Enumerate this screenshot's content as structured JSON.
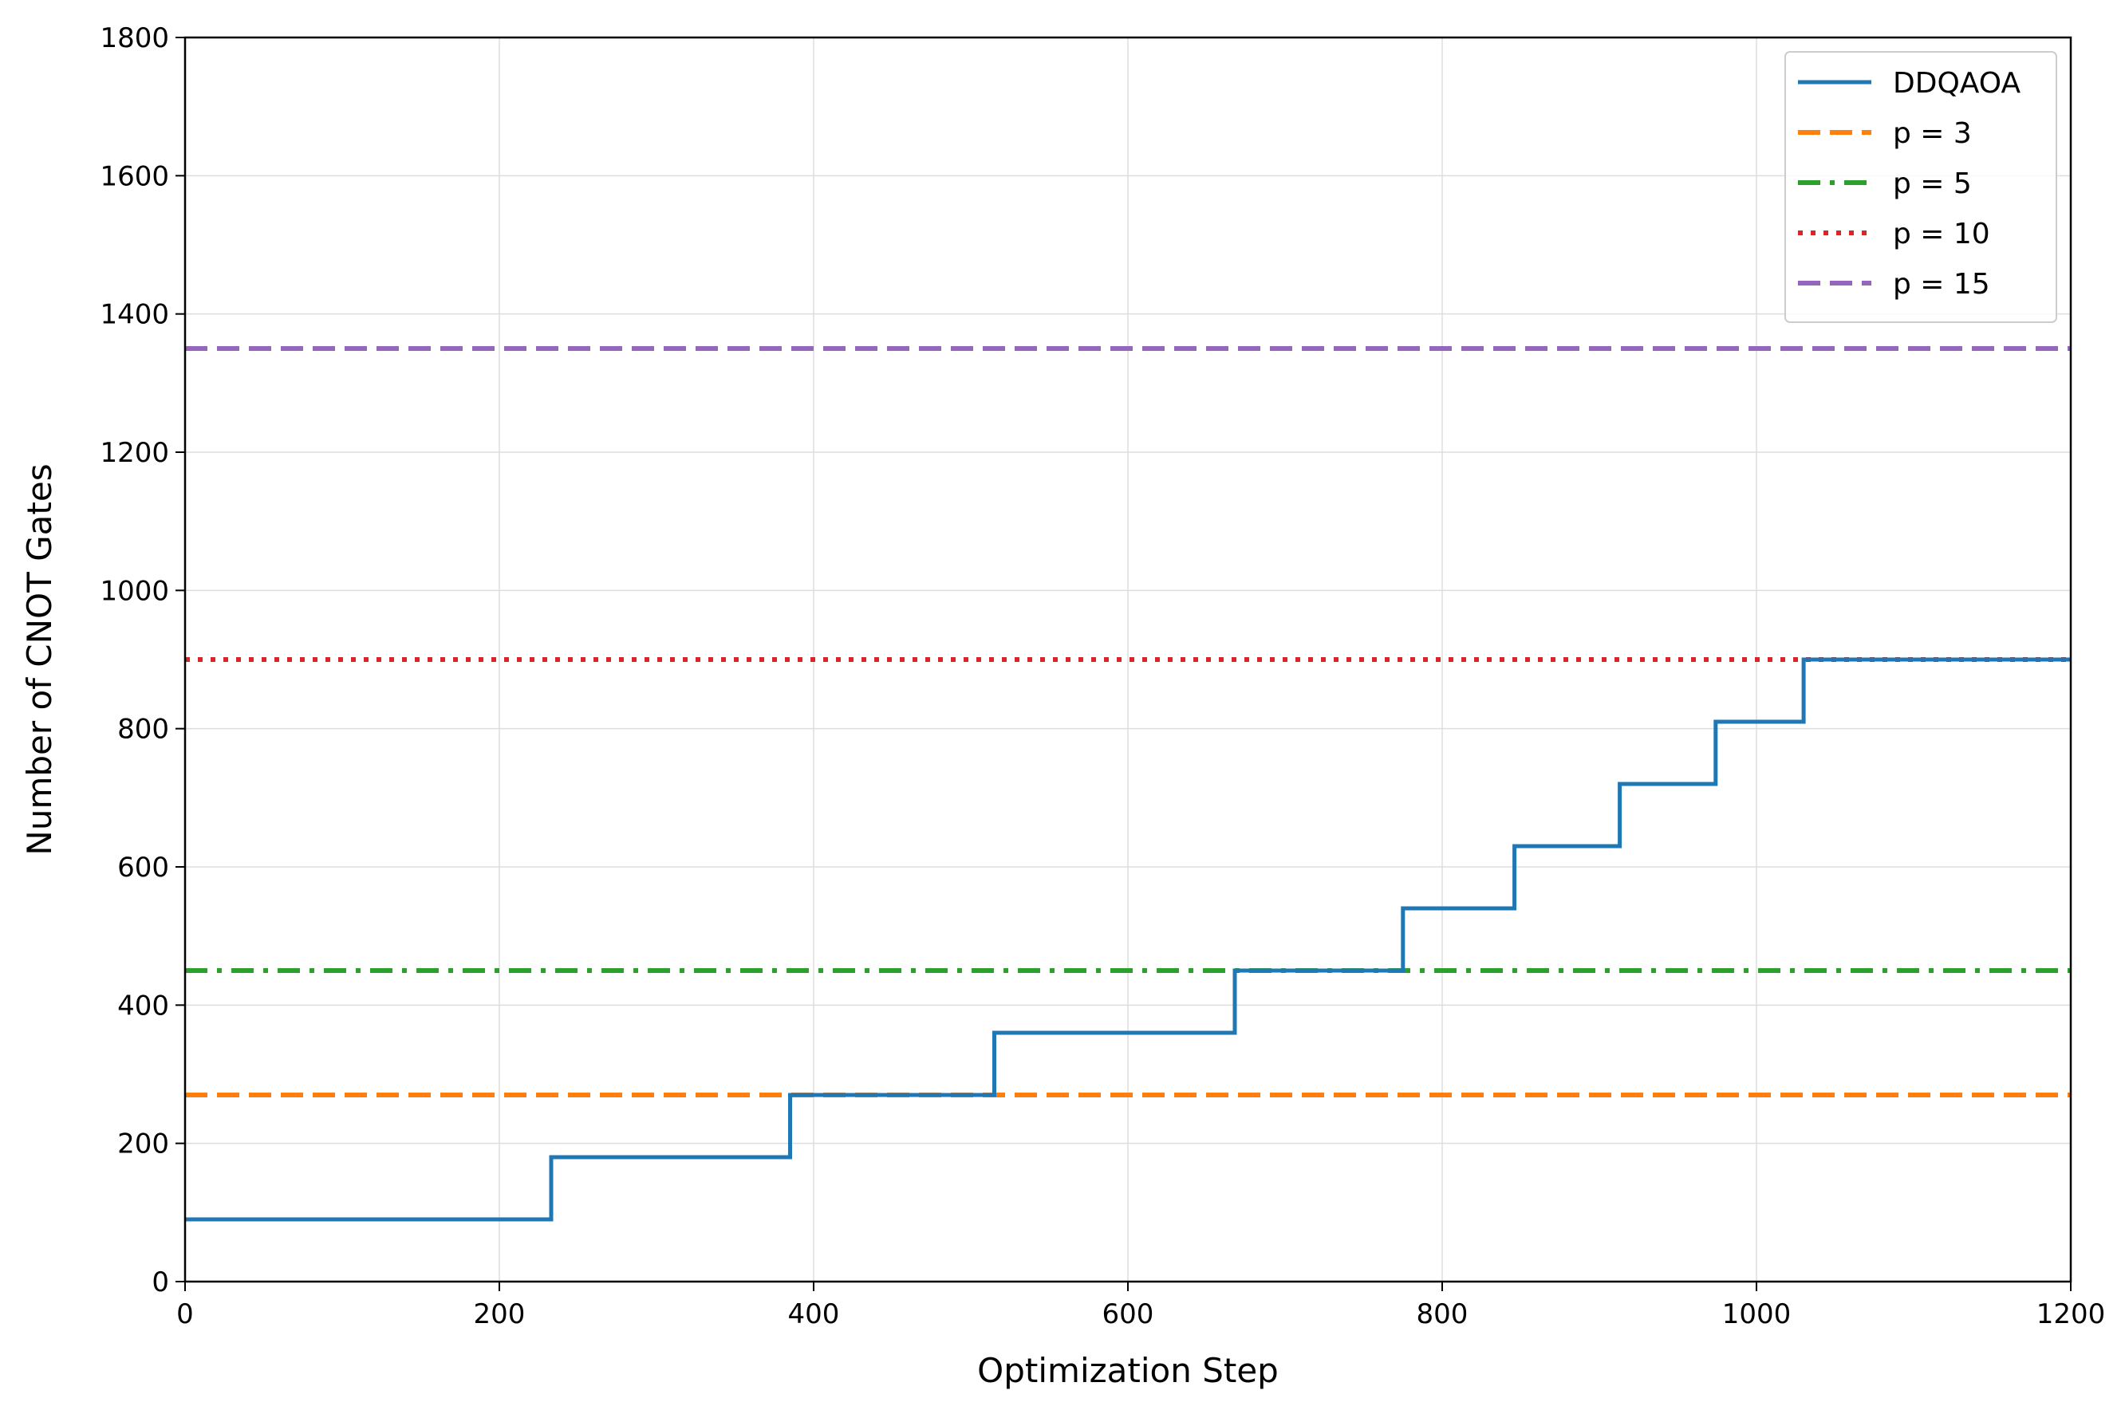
{
  "chart_data": {
    "type": "line",
    "title": "",
    "xlabel": "Optimization Step",
    "ylabel": "Number of CNOT Gates",
    "xlim": [
      0,
      1200
    ],
    "ylim": [
      0,
      1800
    ],
    "x_ticks": [
      0,
      200,
      400,
      600,
      800,
      1000,
      1200
    ],
    "y_ticks": [
      0,
      200,
      400,
      600,
      800,
      1000,
      1200,
      1400,
      1600,
      1800
    ],
    "grid": true,
    "legend_position": "top-right",
    "series": [
      {
        "name": "DDQAOA",
        "style": "solid",
        "color": "#1f77b4",
        "step": true,
        "x": [
          0,
          233,
          385,
          515,
          668,
          775,
          846,
          913,
          974,
          1030,
          1200
        ],
        "y": [
          90,
          180,
          270,
          360,
          450,
          540,
          630,
          720,
          810,
          900,
          900
        ]
      },
      {
        "name": "p = 3",
        "style": "dashed",
        "color": "#ff7f0e",
        "y_const": 270
      },
      {
        "name": "p = 5",
        "style": "dashdot",
        "color": "#2ca02c",
        "y_const": 450
      },
      {
        "name": "p = 10",
        "style": "dotted",
        "color": "#d62728",
        "y_const": 900
      },
      {
        "name": "p = 15",
        "style": "dashed",
        "color": "#9467bd",
        "y_const": 1350
      }
    ]
  }
}
